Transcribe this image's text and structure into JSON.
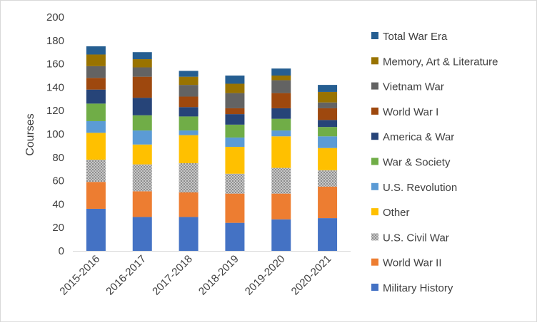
{
  "chart_data": {
    "type": "bar",
    "stacked": true,
    "title": "",
    "xlabel": "",
    "ylabel": "Courses",
    "ylim": [
      0,
      200
    ],
    "ytick_step": 20,
    "grid": false,
    "legend_position": "right",
    "categories": [
      "2015-2016",
      "2016-2017",
      "2017-2018",
      "2018-2019",
      "2019-2020",
      "2020-2021"
    ],
    "series": [
      {
        "name": "Military History",
        "color": "#4472C4",
        "values": [
          36,
          29,
          29,
          24,
          27,
          28
        ]
      },
      {
        "name": "World War II",
        "color": "#ED7D31",
        "values": [
          23,
          22,
          21,
          25,
          22,
          27
        ]
      },
      {
        "name": "U.S. Civil War",
        "color": "#A5A5A5",
        "pattern": "dots",
        "values": [
          19,
          23,
          25,
          17,
          22,
          14
        ]
      },
      {
        "name": "Other",
        "color": "#FFC000",
        "values": [
          23,
          17,
          24,
          23,
          27,
          19
        ]
      },
      {
        "name": "U.S. Revolution",
        "color": "#5B9BD5",
        "values": [
          10,
          12,
          4,
          8,
          5,
          10
        ]
      },
      {
        "name": "War & Society",
        "color": "#70AD47",
        "values": [
          15,
          13,
          12,
          11,
          10,
          8
        ]
      },
      {
        "name": "America & War",
        "color": "#264478",
        "values": [
          12,
          15,
          8,
          9,
          9,
          6
        ]
      },
      {
        "name": "World War I",
        "color": "#9E480E",
        "values": [
          10,
          18,
          9,
          5,
          13,
          10
        ]
      },
      {
        "name": "Vietnam War",
        "color": "#636363",
        "values": [
          10,
          8,
          10,
          13,
          11,
          5
        ]
      },
      {
        "name": "Memory, Art & Literature",
        "color": "#997300",
        "values": [
          10,
          7,
          7,
          8,
          4,
          9
        ]
      },
      {
        "name": "Total War Era",
        "color": "#255E91",
        "values": [
          7,
          6,
          5,
          7,
          6,
          6
        ]
      }
    ]
  }
}
